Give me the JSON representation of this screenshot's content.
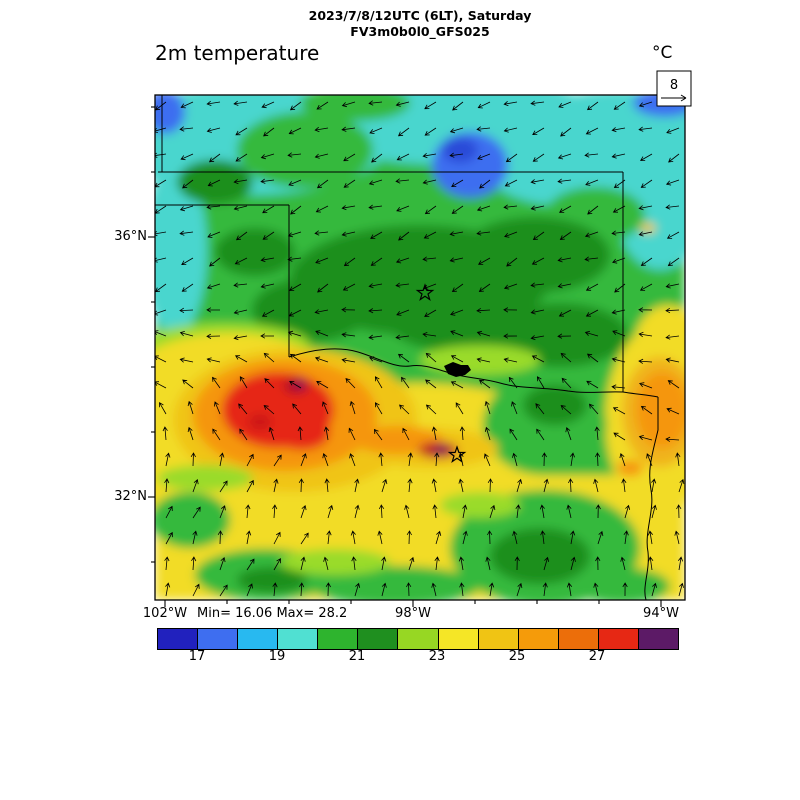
{
  "header": {
    "datetime_line": "2023/7/8/12UTC (6LT), Saturday",
    "model_line": "FV3m0b0l0_GFS025"
  },
  "plot": {
    "title": "2m temperature",
    "unit": "°C",
    "min_max_text": "Min= 16.06 Max= 28.2",
    "min_value": 16.06,
    "max_value": 28.2
  },
  "ref_vector": {
    "label": "8"
  },
  "axes": {
    "lat_labels": [
      {
        "text": "36°N"
      },
      {
        "text": "32°N"
      }
    ],
    "lon_labels": [
      {
        "text": "102°W"
      },
      {
        "text": "98°W"
      },
      {
        "text": "94°W"
      }
    ]
  },
  "colorbar": {
    "tick_labels": [
      "17",
      "19",
      "21",
      "23",
      "25",
      "27"
    ],
    "colors": [
      "#2121BE",
      "#3E6EF0",
      "#28B9F0",
      "#50E0D2",
      "#2EB42E",
      "#1F8F1F",
      "#97D723",
      "#F5E626",
      "#F0C414",
      "#F59B0A",
      "#EC6E0A",
      "#E62814",
      "#5C1A66"
    ],
    "value_range": [
      16,
      29
    ],
    "field": "2m temperature (°C)"
  }
}
